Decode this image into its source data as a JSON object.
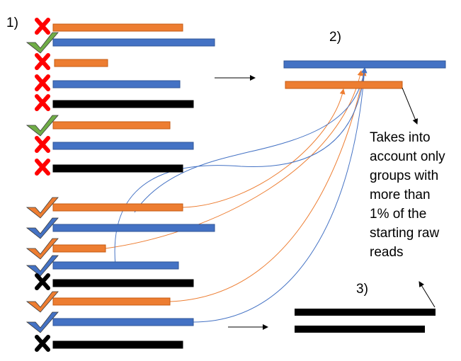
{
  "labels": {
    "step1": "1)",
    "step2": "2)",
    "step3": "3)"
  },
  "note": {
    "lines": [
      "Takes into",
      "account only",
      "groups with",
      "more than",
      "1% of the",
      "starting raw",
      "reads"
    ]
  },
  "colors": {
    "orange": "#ED7D31",
    "blue": "#4472C4",
    "black": "#000000",
    "cross_red": "#FF0000",
    "check_green": "#70AD47",
    "check_orange": "#ED7D31",
    "check_blue": "#4472C4",
    "cross_black": "#000000"
  },
  "icons": {
    "check": "checkmark-icon",
    "cross": "cross-icon",
    "arrow": "arrow-icon"
  },
  "step1_reads": [
    {
      "color": "orange",
      "mark": "cross",
      "mark_color": "red"
    },
    {
      "color": "blue",
      "mark": "check",
      "mark_color": "green"
    },
    {
      "color": "orange",
      "mark": "cross",
      "mark_color": "red"
    },
    {
      "color": "blue",
      "mark": "cross",
      "mark_color": "red"
    },
    {
      "color": "black",
      "mark": "cross",
      "mark_color": "red"
    },
    {
      "color": "orange",
      "mark": "check",
      "mark_color": "green"
    },
    {
      "color": "blue",
      "mark": "cross",
      "mark_color": "red"
    },
    {
      "color": "black",
      "mark": "cross",
      "mark_color": "red"
    },
    {
      "color": "orange",
      "mark": "check",
      "mark_color": "orange"
    },
    {
      "color": "blue",
      "mark": "check",
      "mark_color": "blue"
    },
    {
      "color": "orange",
      "mark": "check",
      "mark_color": "orange"
    },
    {
      "color": "blue",
      "mark": "check",
      "mark_color": "blue"
    },
    {
      "color": "black",
      "mark": "cross",
      "mark_color": "black"
    },
    {
      "color": "orange",
      "mark": "check",
      "mark_color": "orange"
    },
    {
      "color": "blue",
      "mark": "check",
      "mark_color": "blue"
    },
    {
      "color": "black",
      "mark": "cross",
      "mark_color": "black"
    }
  ],
  "step2_groups": [
    {
      "color": "blue"
    },
    {
      "color": "orange"
    }
  ],
  "step3_groups": [
    {
      "color": "black"
    },
    {
      "color": "black"
    }
  ]
}
